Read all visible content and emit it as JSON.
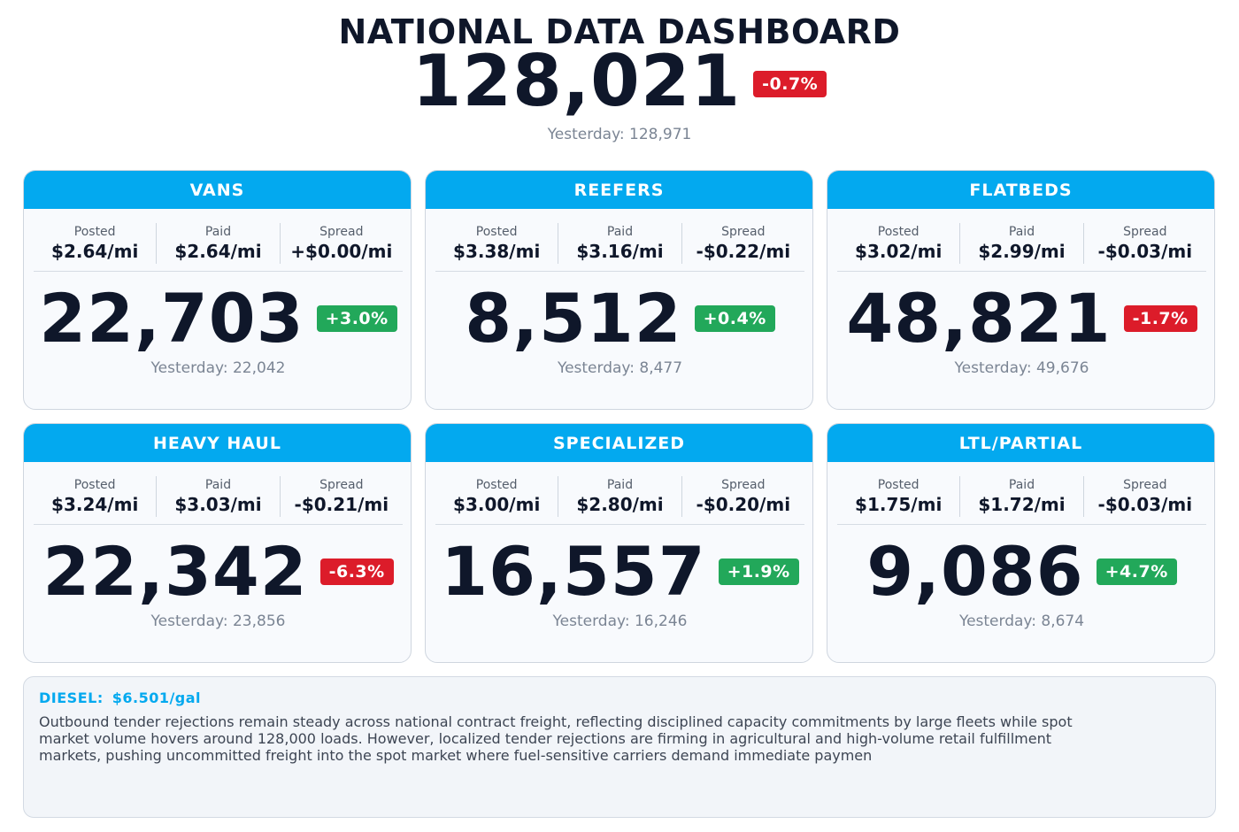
{
  "header": {
    "title": "NATIONAL DATA DASHBOARD",
    "total": "128,021",
    "total_change": "-0.7%",
    "total_change_dir": "neg",
    "yesterday": "Yesterday: 128,971"
  },
  "rate_labels": {
    "posted": "Posted",
    "paid": "Paid",
    "spread": "Spread"
  },
  "cards": [
    {
      "title": "VANS",
      "posted": "$2.64/mi",
      "paid": "$2.64/mi",
      "spread": "+$0.00/mi",
      "value": "22,703",
      "change": "+3.0%",
      "dir": "pos",
      "yesterday": "Yesterday: 22,042"
    },
    {
      "title": "REEFERS",
      "posted": "$3.38/mi",
      "paid": "$3.16/mi",
      "spread": "-$0.22/mi",
      "value": "8,512",
      "change": "+0.4%",
      "dir": "pos",
      "yesterday": "Yesterday: 8,477"
    },
    {
      "title": "FLATBEDS",
      "posted": "$3.02/mi",
      "paid": "$2.99/mi",
      "spread": "-$0.03/mi",
      "value": "48,821",
      "change": "-1.7%",
      "dir": "neg",
      "yesterday": "Yesterday: 49,676"
    },
    {
      "title": "HEAVY HAUL",
      "posted": "$3.24/mi",
      "paid": "$3.03/mi",
      "spread": "-$0.21/mi",
      "value": "22,342",
      "change": "-6.3%",
      "dir": "neg",
      "yesterday": "Yesterday: 23,856"
    },
    {
      "title": "SPECIALIZED",
      "posted": "$3.00/mi",
      "paid": "$2.80/mi",
      "spread": "-$0.20/mi",
      "value": "16,557",
      "change": "+1.9%",
      "dir": "pos",
      "yesterday": "Yesterday: 16,246"
    },
    {
      "title": "LTL/PARTIAL",
      "posted": "$1.75/mi",
      "paid": "$1.72/mi",
      "spread": "-$0.03/mi",
      "value": "9,086",
      "change": "+4.7%",
      "dir": "pos",
      "yesterday": "Yesterday: 8,674"
    }
  ],
  "notes": {
    "diesel_label": "DIESEL:",
    "diesel_value": "$6.501/gal",
    "commentary": "Outbound tender rejections remain steady across national contract freight, reflecting disciplined capacity commitments by large fleets while spot market volume hovers around 128,000 loads. However, localized tender rejections are firming in agricultural and high-volume retail fulfillment markets, pushing uncommitted freight into the spot market where fuel-sensitive carriers demand immediate paymen"
  },
  "colors": {
    "accent": "#03a9ef",
    "negative": "#dc1c2a",
    "positive": "#22a85a",
    "text": "#0f172a"
  }
}
